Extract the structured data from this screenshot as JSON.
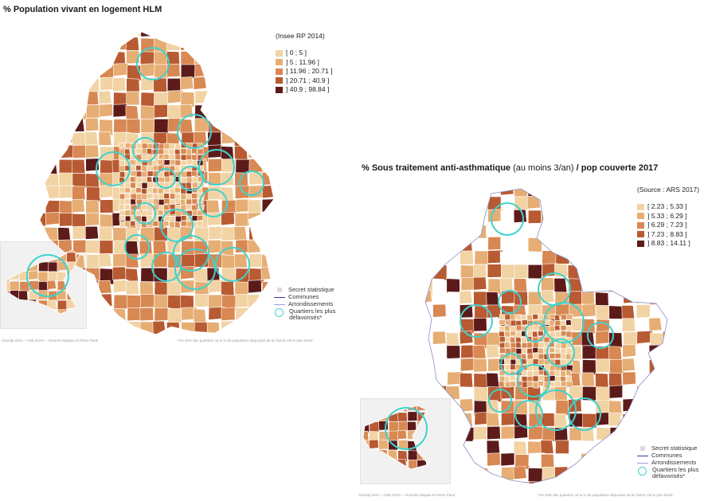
{
  "maps": [
    {
      "title": "% Population vivant en logement HLM",
      "source": "(Insee RP 2014)",
      "legend": [
        {
          "label": "[ 0 ; 5 ]",
          "color": "#f2d3a4"
        },
        {
          "label": "] 5 ; 11.96 ]",
          "color": "#e6ae74"
        },
        {
          "label": "] 11.96 ; 20.71 ]",
          "color": "#d88852"
        },
        {
          "label": "] 20.71 ; 40.9 ]",
          "color": "#b85a32"
        },
        {
          "label": "] 40.9 ; 98.84 ]",
          "color": "#5c1b19"
        }
      ],
      "keys": {
        "secret": "Secret statistique",
        "communes": "Communes",
        "arrondissements": "Arrondissements",
        "quartiers_line1": "Quartiers les plus",
        "quartiers_line2": "défavorisés*"
      },
      "footnote_left": "Géoclip 2014 – CNIL/GZ% – Victorine Bargas et Pierre Pané",
      "footnote_right": "* les 20% des quartiers où le % de population disposant de la CMUC est le plus élevé"
    },
    {
      "title_bold_1": "% Sous traitement anti-asthmatique",
      "title_normal": " (au moins 3/an)",
      "title_bold_2": " / pop couverte 2017",
      "source": "(Source : ARS 2017)",
      "legend": [
        {
          "label": "[ 2.23 ; 5.33 ]",
          "color": "#f2d3a4"
        },
        {
          "label": "] 5.33 ; 6.29 ]",
          "color": "#e6ae74"
        },
        {
          "label": "] 6.29 ; 7.23 ]",
          "color": "#d88852"
        },
        {
          "label": "] 7.23 ; 8.83 ]",
          "color": "#b85a32"
        },
        {
          "label": "] 8.83 ; 14.11 ]",
          "color": "#5c1b19"
        }
      ],
      "keys": {
        "secret": "Secret statistique",
        "communes": "Communes",
        "arrondissements": "Arrondissements",
        "quartiers_line1": "Quartiers les plus",
        "quartiers_line2": "défavorisés*"
      },
      "footnote_left": "Géoclip 2014 – CNIL/GZ% – Victorine Bargas et Pierre Pané",
      "footnote_right": "* les 20% des quartiers où le % de population disposant de la CMUC est le plus élevé"
    }
  ],
  "colors": {
    "circle": "#3fd2cd",
    "secret": "#ece0ea",
    "commune_line": "#3b3b9a",
    "arrondissement_line": "#9aa0d8"
  }
}
